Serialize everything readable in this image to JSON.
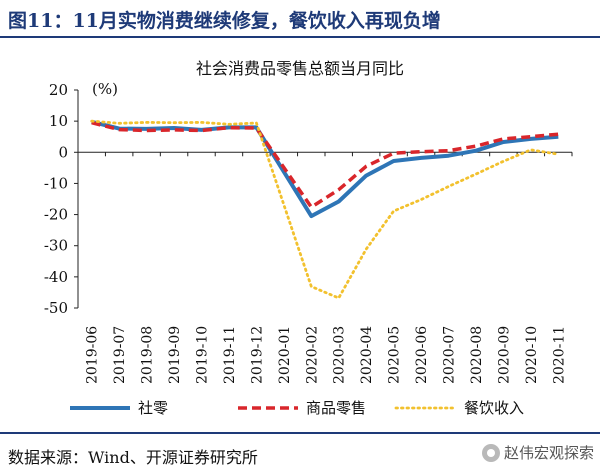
{
  "header": {
    "title": "图11：11月实物消费继续修复，餐饮收入再现负增"
  },
  "footer": {
    "source": "数据来源：Wind、开源证券研究所",
    "watermark": "赵伟宏观探索"
  },
  "chart_data": {
    "type": "line",
    "title": "社会消费品零售总额当月同比",
    "ylabel": "(%)",
    "ylim": [
      -50,
      20
    ],
    "yticks": [
      20,
      10,
      0,
      -10,
      -20,
      -30,
      -40,
      -50
    ],
    "grid": false,
    "legend_placement": "bottom",
    "categories": [
      "2019-06",
      "2019-07",
      "2019-08",
      "2019-09",
      "2019-10",
      "2019-11",
      "2019-12",
      "2020-01",
      "2020-02",
      "2020-03",
      "2020-04",
      "2020-05",
      "2020-06",
      "2020-07",
      "2020-08",
      "2020-09",
      "2020-10",
      "2020-11"
    ],
    "series": [
      {
        "name": "社零",
        "color": "#2e75b6",
        "style": "solid",
        "values": [
          9.8,
          7.6,
          7.5,
          7.8,
          7.2,
          8.0,
          8.0,
          null,
          -20.5,
          -15.8,
          -7.5,
          -2.8,
          -1.8,
          -1.1,
          0.5,
          3.3,
          4.3,
          5.0
        ]
      },
      {
        "name": "商品零售",
        "color": "#d9262b",
        "style": "dashed",
        "values": [
          9.5,
          7.3,
          7.0,
          7.2,
          7.0,
          7.9,
          7.8,
          null,
          -17.6,
          -12.0,
          -4.5,
          -0.3,
          0.2,
          0.5,
          2.0,
          4.3,
          5.0,
          5.8
        ]
      },
      {
        "name": "餐饮收入",
        "color": "#f2c12e",
        "style": "dotted",
        "values": [
          10.0,
          9.3,
          9.6,
          9.5,
          9.6,
          9.0,
          9.4,
          null,
          -43.1,
          -46.8,
          -31.1,
          -18.9,
          -15.2,
          -11.0,
          -7.0,
          -2.9,
          0.8,
          -0.6
        ]
      }
    ]
  }
}
